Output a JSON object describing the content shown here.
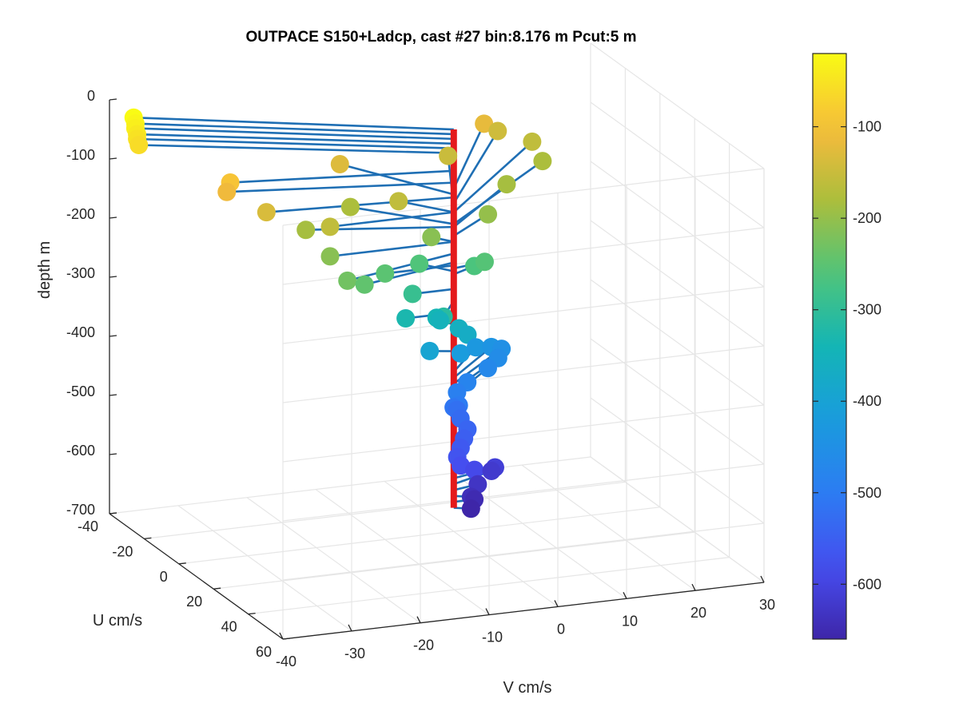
{
  "chart_data": {
    "type": "scatter",
    "title": "OUTPACE S150+Ladcp, cast #27 bin:8.176 m  Pcut:5 m",
    "xlabel": "V cm/s",
    "ylabel": "U cm/s",
    "zlabel": "depth m",
    "xlim": [
      -40,
      30
    ],
    "ylim": [
      -40,
      60
    ],
    "zlim": [
      -700,
      0
    ],
    "x_ticks": [
      "-40",
      "-30",
      "-20",
      "-10",
      "0",
      "10",
      "20",
      "30"
    ],
    "y_ticks": [
      "-40",
      "-20",
      "0",
      "20",
      "40",
      "60"
    ],
    "z_ticks": [
      "0",
      "-100",
      "-200",
      "-300",
      "-400",
      "-500",
      "-600",
      "-700"
    ],
    "grid": true,
    "colorbar": {
      "colormap": "parula",
      "range": [
        -660,
        -20
      ],
      "ticks": [
        "-100",
        "-200",
        "-300",
        "-400",
        "-500",
        "-600"
      ]
    },
    "profile_line_color": "#e41a1c",
    "stick_color": "#1f6fb4",
    "points": [
      {
        "depth": -20,
        "v": -38,
        "u": -34
      },
      {
        "depth": -28,
        "v": -38,
        "u": -33
      },
      {
        "depth": -36,
        "v": -38,
        "u": -33
      },
      {
        "depth": -44,
        "v": -38,
        "u": -32
      },
      {
        "depth": -52,
        "v": -38,
        "u": -32
      },
      {
        "depth": -60,
        "v": -38,
        "u": -31
      },
      {
        "depth": -90,
        "v": -30,
        "u": -10
      },
      {
        "depth": -110,
        "v": -30,
        "u": -12
      },
      {
        "depth": -135,
        "v": -26,
        "u": -5
      },
      {
        "depth": -160,
        "v": -18,
        "u": 0
      },
      {
        "depth": -130,
        "v": -9,
        "u": -30
      },
      {
        "depth": -160,
        "v": -5,
        "u": -12
      },
      {
        "depth": -150,
        "v": 8,
        "u": -35
      },
      {
        "depth": -120,
        "v": 15,
        "u": -42
      },
      {
        "depth": -145,
        "v": 18,
        "u": -46
      },
      {
        "depth": -160,
        "v": 22,
        "u": -42
      },
      {
        "depth": -180,
        "v": 22,
        "u": -36
      },
      {
        "depth": -185,
        "v": 14,
        "u": -25
      },
      {
        "depth": -200,
        "v": 8,
        "u": -12
      },
      {
        "depth": -210,
        "v": -2,
        "u": -5
      },
      {
        "depth": -180,
        "v": -10,
        "u": -20
      },
      {
        "depth": -185,
        "v": -19,
        "u": -10
      },
      {
        "depth": -210,
        "v": -18,
        "u": 0
      },
      {
        "depth": -230,
        "v": -18,
        "u": 10
      },
      {
        "depth": -245,
        "v": -15,
        "u": 8
      },
      {
        "depth": -250,
        "v": -10,
        "u": 0
      },
      {
        "depth": -260,
        "v": -3,
        "u": -8
      },
      {
        "depth": -265,
        "v": 4,
        "u": -4
      },
      {
        "depth": -255,
        "v": 5,
        "u": -2
      },
      {
        "depth": -290,
        "v": -6,
        "u": 0
      },
      {
        "depth": -310,
        "v": -4,
        "u": 10
      },
      {
        "depth": -330,
        "v": -7,
        "u": 0
      },
      {
        "depth": -340,
        "v": -2,
        "u": -2
      },
      {
        "depth": -350,
        "v": -1,
        "u": -4
      },
      {
        "depth": -360,
        "v": 1,
        "u": -1
      },
      {
        "depth": -370,
        "v": 2,
        "u": 0
      },
      {
        "depth": -395,
        "v": -3,
        "u": -2
      },
      {
        "depth": -420,
        "v": 3,
        "u": -8
      },
      {
        "depth": -430,
        "v": 7,
        "u": -15
      },
      {
        "depth": -440,
        "v": 10,
        "u": -18
      },
      {
        "depth": -450,
        "v": 12,
        "u": -20
      },
      {
        "depth": -460,
        "v": 11,
        "u": -18
      },
      {
        "depth": -470,
        "v": 9,
        "u": -16
      },
      {
        "depth": -480,
        "v": 5,
        "u": -12
      },
      {
        "depth": -490,
        "v": 3,
        "u": -10
      },
      {
        "depth": -500,
        "v": 2,
        "u": -5
      },
      {
        "depth": -510,
        "v": 2,
        "u": -8
      },
      {
        "depth": -520,
        "v": 3,
        "u": -10
      },
      {
        "depth": -530,
        "v": 3,
        "u": -8
      },
      {
        "depth": -540,
        "v": 3,
        "u": -4
      },
      {
        "depth": -550,
        "v": 2,
        "u": -2
      },
      {
        "depth": -560,
        "v": 1,
        "u": 0
      },
      {
        "depth": -570,
        "v": 0,
        "u": 2
      },
      {
        "depth": -580,
        "v": 0,
        "u": 4
      },
      {
        "depth": -590,
        "v": 2,
        "u": 4
      },
      {
        "depth": -600,
        "v": 6,
        "u": 0
      },
      {
        "depth": -610,
        "v": 7,
        "u": -4
      },
      {
        "depth": -620,
        "v": 7,
        "u": -6
      },
      {
        "depth": -630,
        "v": 4,
        "u": -2
      },
      {
        "depth": -640,
        "v": 2,
        "u": 2
      },
      {
        "depth": -650,
        "v": 3,
        "u": 0
      },
      {
        "depth": -660,
        "v": 2,
        "u": 2
      }
    ]
  }
}
